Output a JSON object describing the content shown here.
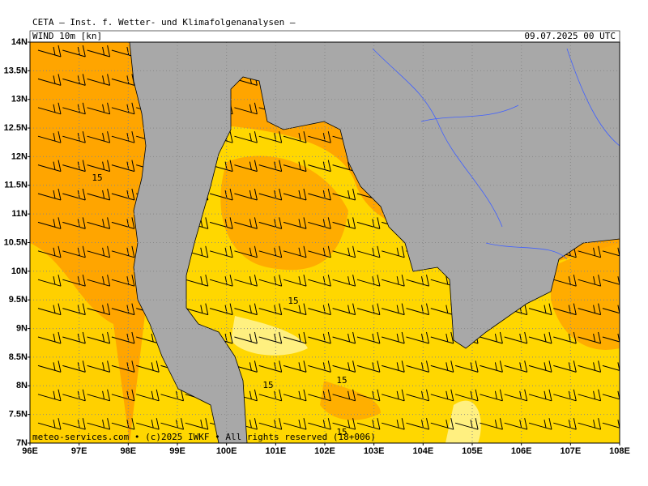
{
  "header": {
    "title": "CETA — Inst. f. Wetter- und Klimafolgenanalysen —",
    "field": "WIND 10m [kn]",
    "valid": "09.07.2025 00 UTC"
  },
  "axes": {
    "lat": [
      "14N",
      "13.5N",
      "13N",
      "12.5N",
      "12N",
      "11.5N",
      "11N",
      "10.5N",
      "10N",
      "9.5N",
      "9N",
      "8.5N",
      "8N",
      "7.5N",
      "7N"
    ],
    "lon": [
      "96E",
      "97E",
      "98E",
      "99E",
      "100E",
      "101E",
      "102E",
      "103E",
      "104E",
      "105E",
      "106E",
      "107E",
      "108E"
    ]
  },
  "contour_labels": [
    "15",
    "15",
    "15",
    "15",
    "15"
  ],
  "footer": "meteo-services.com • (c)2025 IWKF • All rights reserved (18+006)"
}
